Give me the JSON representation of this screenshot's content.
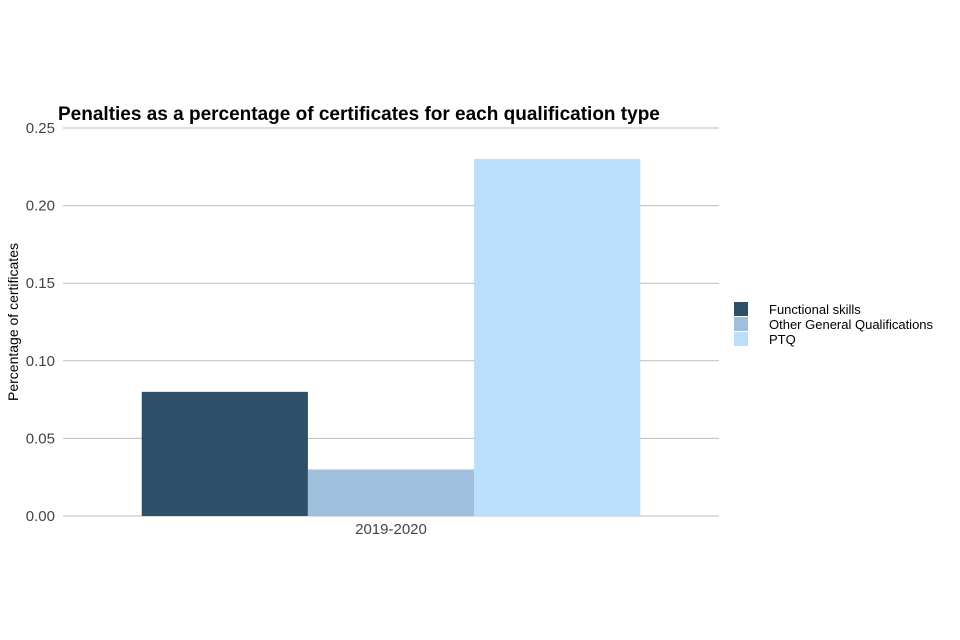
{
  "chart_data": {
    "type": "bar",
    "title": "Penalties as a percentage of certificates for each qualification type",
    "xlabel": "",
    "ylabel": "Percentage of certificates",
    "categories": [
      "2019-2020"
    ],
    "series": [
      {
        "name": "Functional skills",
        "values": [
          0.08
        ],
        "color": "#2e4f68"
      },
      {
        "name": "Other General Qualifications",
        "values": [
          0.03
        ],
        "color": "#9fbfdd"
      },
      {
        "name": "PTQ",
        "values": [
          0.23
        ],
        "color": "#bbdefb"
      }
    ],
    "ylim": [
      0,
      0.25
    ],
    "yticks": [
      "0.00",
      "0.05",
      "0.10",
      "0.15",
      "0.20",
      "0.25"
    ],
    "grid": true,
    "legend_position": "right"
  }
}
